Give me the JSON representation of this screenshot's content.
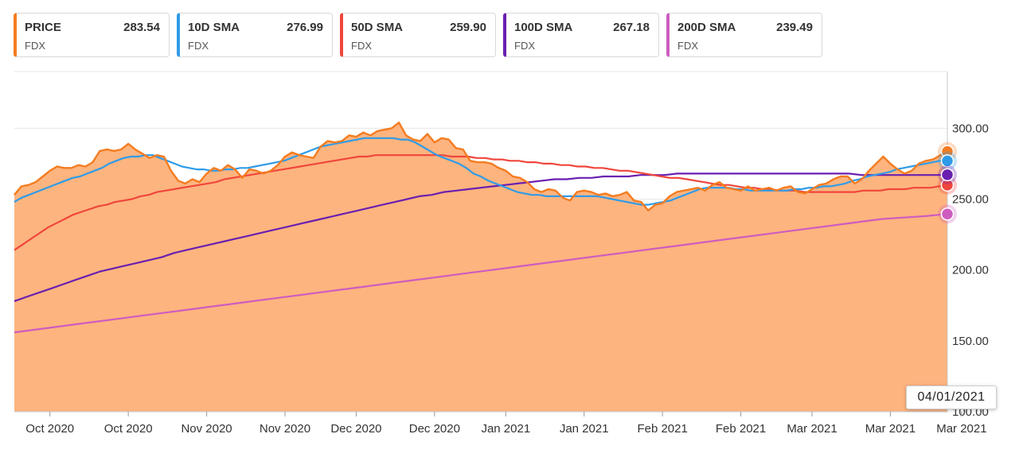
{
  "legend": [
    {
      "name": "PRICE",
      "value": "283.54",
      "symbol": "FDX",
      "color": "#f47c20"
    },
    {
      "name": "10D SMA",
      "value": "276.99",
      "symbol": "FDX",
      "color": "#2f9be8"
    },
    {
      "name": "50D SMA",
      "value": "259.90",
      "symbol": "FDX",
      "color": "#f0463c"
    },
    {
      "name": "100D SMA",
      "value": "267.18",
      "symbol": "FDX",
      "color": "#6a1fb0"
    },
    {
      "name": "200D SMA",
      "value": "239.49",
      "symbol": "FDX",
      "color": "#cf5cbf"
    }
  ],
  "crosshair_date": "04/01/2021",
  "chart_data": {
    "type": "area",
    "title": "",
    "xlabel": "",
    "ylabel": "",
    "ylim": [
      100,
      340
    ],
    "yticks": [
      100,
      150,
      200,
      250,
      300
    ],
    "ytick_labels": [
      "100.00",
      "150.00",
      "200.00",
      "250.00",
      "300.00"
    ],
    "xtick_labels": [
      "Oct 2020",
      "Oct 2020",
      "Nov 2020",
      "Nov 2020",
      "Dec 2020",
      "Dec 2020",
      "Jan 2021",
      "Jan 2021",
      "Feb 2021",
      "Feb 2021",
      "Mar 2021",
      "Mar 2021",
      "Mar 2021"
    ],
    "xtick_index": [
      5,
      16,
      27,
      38,
      48,
      59,
      69,
      80,
      91,
      102,
      112,
      123,
      133
    ],
    "grid": true,
    "series": [
      {
        "name": "PRICE",
        "color": "#f47c20",
        "fill": "#fdb47f",
        "values": [
          253,
          259,
          260,
          262,
          266,
          270,
          273,
          272,
          272,
          274,
          273,
          276,
          284,
          285,
          284,
          285,
          289,
          285,
          282,
          279,
          281,
          280,
          270,
          263,
          261,
          264,
          262,
          268,
          272,
          270,
          274,
          271,
          265,
          271,
          270,
          268,
          270,
          274,
          280,
          283,
          281,
          280,
          279,
          287,
          291,
          290,
          291,
          295,
          294,
          297,
          295,
          298,
          299,
          300,
          304,
          295,
          292,
          291,
          296,
          290,
          293,
          292,
          286,
          285,
          277,
          276,
          276,
          275,
          272,
          270,
          266,
          265,
          262,
          257,
          255,
          257,
          256,
          251,
          249,
          255,
          256,
          255,
          253,
          254,
          252,
          253,
          255,
          249,
          248,
          242,
          246,
          247,
          252,
          255,
          256,
          257,
          258,
          256,
          260,
          262,
          258,
          257,
          256,
          259,
          256,
          257,
          258,
          256,
          258,
          259,
          255,
          254,
          257,
          260,
          261,
          264,
          266,
          266,
          261,
          264,
          270,
          275,
          280,
          275,
          271,
          268,
          270,
          275,
          277,
          278,
          281,
          283.54
        ]
      },
      {
        "name": "10D SMA",
        "color": "#2f9be8",
        "values": [
          248,
          251,
          253,
          255,
          257,
          259,
          261,
          263,
          265,
          266,
          268,
          270,
          272,
          275,
          277,
          279,
          280,
          280,
          281,
          281,
          279,
          277,
          275,
          273,
          272,
          271,
          271,
          270,
          270,
          271,
          271,
          272,
          272,
          273,
          274,
          275,
          276,
          277,
          279,
          281,
          283,
          285,
          287,
          288,
          289,
          290,
          291,
          292,
          293,
          293,
          293,
          293,
          293,
          292,
          292,
          290,
          287,
          284,
          281,
          279,
          277,
          275,
          272,
          268,
          266,
          263,
          261,
          259,
          257,
          255,
          254,
          253,
          253,
          252,
          252,
          252,
          252,
          252,
          252,
          252,
          252,
          251,
          250,
          249,
          248,
          247,
          246,
          246,
          247,
          248,
          249,
          251,
          253,
          255,
          257,
          258,
          258,
          258,
          258,
          257,
          257,
          256,
          256,
          256,
          256,
          256,
          256,
          257,
          257,
          258,
          258,
          259,
          259,
          260,
          261,
          263,
          264,
          266,
          267,
          268,
          269,
          271,
          272,
          273,
          274,
          275,
          276,
          277,
          276.99
        ]
      },
      {
        "name": "50D SMA",
        "color": "#f0463c",
        "values": [
          214,
          218,
          222,
          226,
          230,
          233,
          236,
          239,
          241,
          243,
          245,
          246,
          248,
          249,
          250,
          252,
          253,
          255,
          256,
          257,
          258,
          259,
          260,
          261,
          262,
          264,
          265,
          266,
          267,
          268,
          269,
          270,
          271,
          272,
          273,
          274,
          275,
          276,
          277,
          278,
          279,
          280,
          280,
          281,
          281,
          281,
          281,
          281,
          281,
          281,
          281,
          281,
          280,
          280,
          280,
          279,
          279,
          278,
          278,
          277,
          277,
          276,
          276,
          275,
          275,
          274,
          274,
          273,
          273,
          272,
          272,
          271,
          270,
          270,
          269,
          268,
          267,
          266,
          265,
          265,
          264,
          263,
          262,
          261,
          260,
          260,
          259,
          258,
          258,
          257,
          257,
          256,
          256,
          256,
          255,
          255,
          255,
          255,
          255,
          255,
          255,
          256,
          256,
          256,
          257,
          257,
          257,
          258,
          258,
          258,
          259,
          259.9
        ]
      },
      {
        "name": "100D SMA",
        "color": "#6a1fb0",
        "values": [
          178,
          181,
          184,
          187,
          190,
          193,
          196,
          199,
          201,
          203,
          205,
          207,
          209,
          212,
          214,
          216,
          218,
          220,
          222,
          224,
          226,
          228,
          230,
          232,
          234,
          236,
          238,
          240,
          242,
          244,
          246,
          248,
          250,
          252,
          253,
          255,
          256,
          257,
          258,
          259,
          260,
          261,
          262,
          263,
          264,
          264,
          265,
          265,
          266,
          266,
          266,
          267,
          267,
          267,
          268,
          268,
          268,
          268,
          268,
          268,
          268,
          268,
          268,
          268,
          268,
          268,
          268,
          268,
          268,
          267,
          267,
          267,
          267,
          267,
          267,
          267,
          267.18
        ]
      },
      {
        "name": "200D SMA",
        "color": "#cf5cbf",
        "values": [
          156,
          158,
          160,
          162,
          164,
          166,
          168,
          170,
          172,
          174,
          176,
          178,
          180,
          182,
          184,
          186,
          188,
          190,
          192,
          194,
          196,
          198,
          200,
          202,
          204,
          206,
          208,
          210,
          212,
          214,
          216,
          218,
          220,
          222,
          224,
          226,
          228,
          230,
          232,
          234,
          236,
          237,
          238,
          239.49
        ]
      }
    ]
  }
}
